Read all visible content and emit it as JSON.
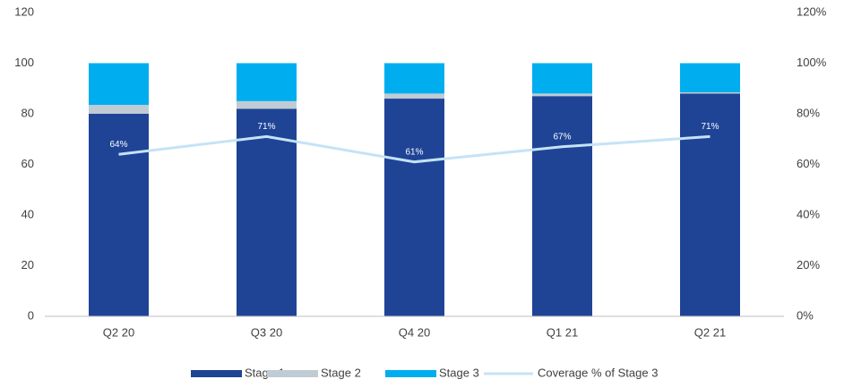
{
  "chart_data": {
    "type": "stacked-bar-line",
    "categories": [
      "Q2 20",
      "Q3 20",
      "Q4 20",
      "Q1 21",
      "Q2 21"
    ],
    "series": [
      {
        "name": "Stage 1",
        "color": "#1f4496",
        "values": [
          80,
          82,
          86,
          87,
          88
        ]
      },
      {
        "name": "Stage 2",
        "color": "#c0cbd3",
        "values": [
          3.5,
          3,
          2,
          1,
          0.5
        ]
      },
      {
        "name": "Stage 3",
        "color": "#00aeef",
        "values": [
          16.5,
          15,
          12,
          12,
          11.5
        ]
      },
      {
        "name": "Coverage % of Stage 3",
        "color": "#c5e3f6",
        "axis": "y2",
        "values": [
          64,
          71,
          61,
          67,
          71
        ],
        "value_labels": [
          "64%",
          "71%",
          "61%",
          "67%",
          "71%"
        ]
      }
    ],
    "ylim": [
      0,
      120
    ],
    "yticks": [
      0,
      20,
      40,
      60,
      80,
      100,
      120
    ],
    "y2lim": [
      0,
      120
    ],
    "y2ticks": [
      {
        "value": 0,
        "label": "0%"
      },
      {
        "value": 20,
        "label": "20%"
      },
      {
        "value": 40,
        "label": "40%"
      },
      {
        "value": 60,
        "label": "60%"
      },
      {
        "value": 80,
        "label": "80%"
      },
      {
        "value": 100,
        "label": "100%"
      },
      {
        "value": 120,
        "label": "120%"
      }
    ],
    "legend": "bottom"
  }
}
